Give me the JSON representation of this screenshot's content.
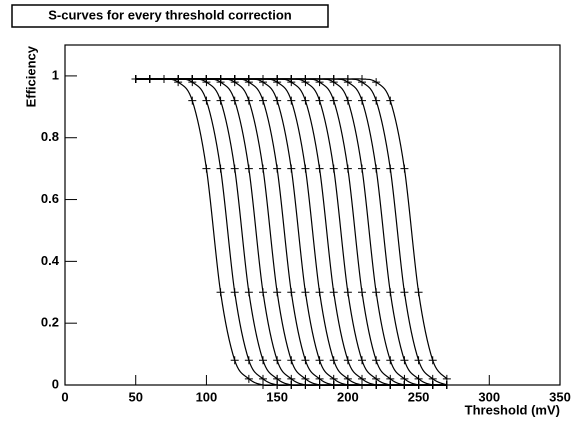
{
  "chart_data": {
    "type": "line",
    "title": "S-curves for every threshold correction",
    "x_label": "Threshold (mV)",
    "y_label": "Efficiency",
    "color": "#000000",
    "xlim": [
      0,
      350
    ],
    "ylim": [
      0,
      1.1
    ],
    "xticks": [
      0,
      50,
      100,
      150,
      200,
      250,
      300,
      350
    ],
    "yticks": [
      0,
      0.2,
      0.4,
      0.6,
      0.8,
      1
    ],
    "x": [
      50,
      60,
      70,
      80,
      90,
      100,
      110,
      120,
      130,
      140,
      150,
      160,
      170,
      180,
      190,
      200,
      210,
      220,
      230,
      240,
      250,
      260,
      270
    ],
    "series": [
      {
        "values": [
          0.99,
          0.99,
          0.99,
          0.98,
          0.92,
          0.7,
          0.3,
          0.08,
          0.02,
          0,
          0,
          0,
          0,
          0,
          0,
          0,
          0,
          0,
          0,
          0,
          0,
          0,
          0
        ]
      },
      {
        "values": [
          0.99,
          0.99,
          0.99,
          0.99,
          0.98,
          0.92,
          0.7,
          0.3,
          0.08,
          0.02,
          0,
          0,
          0,
          0,
          0,
          0,
          0,
          0,
          0,
          0,
          0,
          0,
          0
        ]
      },
      {
        "values": [
          0.99,
          0.99,
          0.99,
          0.99,
          0.99,
          0.98,
          0.92,
          0.7,
          0.3,
          0.08,
          0.02,
          0,
          0,
          0,
          0,
          0,
          0,
          0,
          0,
          0,
          0,
          0,
          0
        ]
      },
      {
        "values": [
          0.99,
          0.99,
          0.99,
          0.99,
          0.99,
          0.99,
          0.98,
          0.92,
          0.7,
          0.3,
          0.08,
          0.02,
          0,
          0,
          0,
          0,
          0,
          0,
          0,
          0,
          0,
          0,
          0
        ]
      },
      {
        "values": [
          0.99,
          0.99,
          0.99,
          0.99,
          0.99,
          0.99,
          0.99,
          0.98,
          0.92,
          0.7,
          0.3,
          0.08,
          0.02,
          0,
          0,
          0,
          0,
          0,
          0,
          0,
          0,
          0,
          0
        ]
      },
      {
        "values": [
          0.99,
          0.99,
          0.99,
          0.99,
          0.99,
          0.99,
          0.99,
          0.99,
          0.98,
          0.92,
          0.7,
          0.3,
          0.08,
          0.02,
          0,
          0,
          0,
          0,
          0,
          0,
          0,
          0,
          0
        ]
      },
      {
        "values": [
          0.99,
          0.99,
          0.99,
          0.99,
          0.99,
          0.99,
          0.99,
          0.99,
          0.99,
          0.98,
          0.92,
          0.7,
          0.3,
          0.08,
          0.02,
          0,
          0,
          0,
          0,
          0,
          0,
          0,
          0
        ]
      },
      {
        "values": [
          0.99,
          0.99,
          0.99,
          0.99,
          0.99,
          0.99,
          0.99,
          0.99,
          0.99,
          0.99,
          0.98,
          0.92,
          0.7,
          0.3,
          0.08,
          0.02,
          0,
          0,
          0,
          0,
          0,
          0,
          0
        ]
      },
      {
        "values": [
          0.99,
          0.99,
          0.99,
          0.99,
          0.99,
          0.99,
          0.99,
          0.99,
          0.99,
          0.99,
          0.99,
          0.98,
          0.92,
          0.7,
          0.3,
          0.08,
          0.02,
          0,
          0,
          0,
          0,
          0,
          0
        ]
      },
      {
        "values": [
          0.99,
          0.99,
          0.99,
          0.99,
          0.99,
          0.99,
          0.99,
          0.99,
          0.99,
          0.99,
          0.99,
          0.99,
          0.98,
          0.92,
          0.7,
          0.3,
          0.08,
          0.02,
          0,
          0,
          0,
          0,
          0
        ]
      },
      {
        "values": [
          0.99,
          0.99,
          0.99,
          0.99,
          0.99,
          0.99,
          0.99,
          0.99,
          0.99,
          0.99,
          0.99,
          0.99,
          0.99,
          0.98,
          0.92,
          0.7,
          0.3,
          0.08,
          0.02,
          0,
          0,
          0,
          0
        ]
      },
      {
        "values": [
          0.99,
          0.99,
          0.99,
          0.99,
          0.99,
          0.99,
          0.99,
          0.99,
          0.99,
          0.99,
          0.99,
          0.99,
          0.99,
          0.99,
          0.98,
          0.92,
          0.7,
          0.3,
          0.08,
          0.02,
          0,
          0,
          0
        ]
      },
      {
        "values": [
          0.99,
          0.99,
          0.99,
          0.99,
          0.99,
          0.99,
          0.99,
          0.99,
          0.99,
          0.99,
          0.99,
          0.99,
          0.99,
          0.99,
          0.99,
          0.98,
          0.92,
          0.7,
          0.3,
          0.08,
          0.02,
          0,
          0
        ]
      },
      {
        "values": [
          0.99,
          0.99,
          0.99,
          0.99,
          0.99,
          0.99,
          0.99,
          0.99,
          0.99,
          0.99,
          0.99,
          0.99,
          0.99,
          0.99,
          0.99,
          0.99,
          0.98,
          0.92,
          0.7,
          0.3,
          0.08,
          0.02,
          0
        ]
      },
      {
        "values": [
          0.99,
          0.99,
          0.99,
          0.99,
          0.99,
          0.99,
          0.99,
          0.99,
          0.99,
          0.99,
          0.99,
          0.99,
          0.99,
          0.99,
          0.99,
          0.99,
          0.99,
          0.98,
          0.92,
          0.7,
          0.3,
          0.08,
          0.02
        ]
      }
    ]
  }
}
